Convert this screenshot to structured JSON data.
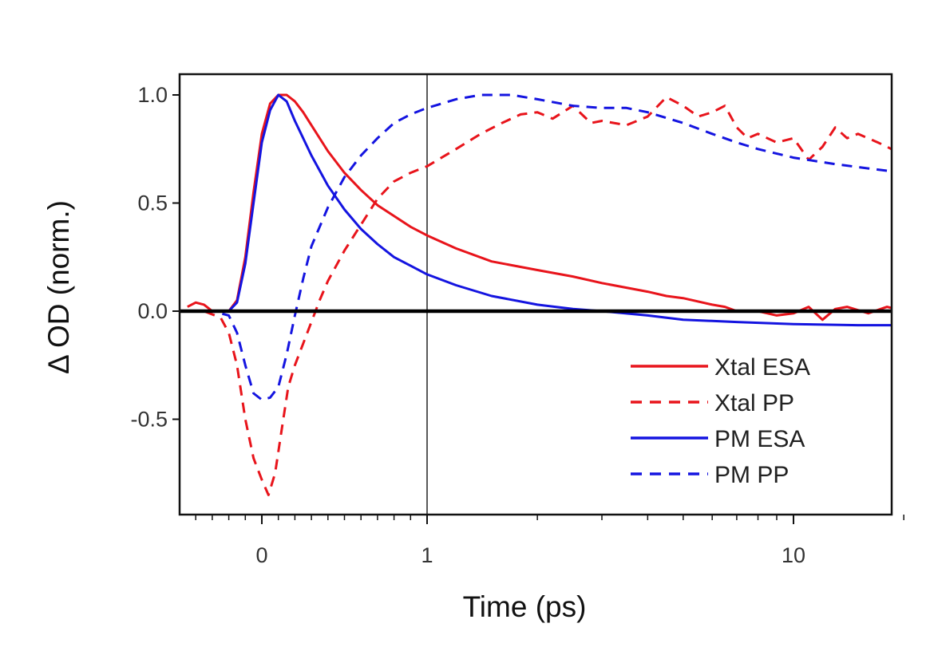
{
  "chart_data": {
    "type": "line",
    "xlabel": "Time (ps)",
    "ylabel": "Δ OD (norm.)",
    "x_scale": "linear below 1 ps, logarithmic above 1 ps",
    "xlim": [
      -0.45,
      20
    ],
    "ylim": [
      -0.95,
      1.1
    ],
    "x_ticks": [
      {
        "value": 0,
        "label": "0"
      },
      {
        "value": 1,
        "label": "1"
      },
      {
        "value": 10,
        "label": "10"
      }
    ],
    "y_ticks": [
      {
        "value": 1.0,
        "label": "1.0"
      },
      {
        "value": 0.5,
        "label": "0.5"
      },
      {
        "value": 0.0,
        "label": "0.0"
      },
      {
        "value": -0.5,
        "label": "-0.5"
      }
    ],
    "grid": false,
    "zero_line": true,
    "vertical_reference_x": 1,
    "legend_position": "bottom-right",
    "series": [
      {
        "name": "Xtal ESA",
        "color": "#e8141b",
        "dash": "solid",
        "points": [
          [
            -0.45,
            0.02
          ],
          [
            -0.4,
            0.04
          ],
          [
            -0.35,
            0.03
          ],
          [
            -0.3,
            0.0
          ],
          [
            -0.25,
            0.0
          ],
          [
            -0.2,
            0.0
          ],
          [
            -0.15,
            0.05
          ],
          [
            -0.1,
            0.25
          ],
          [
            -0.05,
            0.55
          ],
          [
            0.0,
            0.82
          ],
          [
            0.05,
            0.96
          ],
          [
            0.1,
            1.0
          ],
          [
            0.15,
            1.0
          ],
          [
            0.2,
            0.97
          ],
          [
            0.25,
            0.92
          ],
          [
            0.3,
            0.86
          ],
          [
            0.4,
            0.74
          ],
          [
            0.5,
            0.64
          ],
          [
            0.6,
            0.56
          ],
          [
            0.7,
            0.49
          ],
          [
            0.8,
            0.44
          ],
          [
            0.9,
            0.39
          ],
          [
            1.0,
            0.35
          ],
          [
            1.2,
            0.29
          ],
          [
            1.5,
            0.23
          ],
          [
            2.0,
            0.19
          ],
          [
            2.5,
            0.16
          ],
          [
            3.0,
            0.13
          ],
          [
            4.0,
            0.09
          ],
          [
            4.5,
            0.07
          ],
          [
            5.0,
            0.06
          ],
          [
            6.0,
            0.03
          ],
          [
            6.5,
            0.02
          ],
          [
            7.0,
            0.0
          ],
          [
            8.0,
            0.0
          ],
          [
            9.0,
            -0.02
          ],
          [
            10.0,
            -0.01
          ],
          [
            11.0,
            0.02
          ],
          [
            12.0,
            -0.04
          ],
          [
            13.0,
            0.01
          ],
          [
            14.0,
            0.02
          ],
          [
            16.0,
            -0.01
          ],
          [
            18.0,
            0.02
          ],
          [
            20.0,
            0.0
          ]
        ]
      },
      {
        "name": "Xtal PP",
        "color": "#e8141b",
        "dash": "dashed",
        "points": [
          [
            -0.45,
            0.0
          ],
          [
            -0.35,
            0.0
          ],
          [
            -0.25,
            -0.03
          ],
          [
            -0.2,
            -0.1
          ],
          [
            -0.15,
            -0.25
          ],
          [
            -0.1,
            -0.5
          ],
          [
            -0.05,
            -0.68
          ],
          [
            0.0,
            -0.78
          ],
          [
            0.04,
            -0.85
          ],
          [
            0.08,
            -0.75
          ],
          [
            0.12,
            -0.55
          ],
          [
            0.16,
            -0.35
          ],
          [
            0.2,
            -0.25
          ],
          [
            0.25,
            -0.15
          ],
          [
            0.3,
            -0.05
          ],
          [
            0.35,
            0.05
          ],
          [
            0.4,
            0.14
          ],
          [
            0.5,
            0.28
          ],
          [
            0.6,
            0.4
          ],
          [
            0.7,
            0.52
          ],
          [
            0.8,
            0.6
          ],
          [
            0.9,
            0.64
          ],
          [
            1.0,
            0.67
          ],
          [
            1.2,
            0.75
          ],
          [
            1.4,
            0.82
          ],
          [
            1.6,
            0.87
          ],
          [
            1.8,
            0.91
          ],
          [
            2.0,
            0.92
          ],
          [
            2.2,
            0.89
          ],
          [
            2.5,
            0.95
          ],
          [
            2.8,
            0.87
          ],
          [
            3.0,
            0.88
          ],
          [
            3.5,
            0.86
          ],
          [
            4.0,
            0.9
          ],
          [
            4.5,
            0.99
          ],
          [
            5.0,
            0.95
          ],
          [
            5.5,
            0.9
          ],
          [
            6.0,
            0.92
          ],
          [
            6.5,
            0.95
          ],
          [
            7.0,
            0.85
          ],
          [
            7.5,
            0.8
          ],
          [
            8.0,
            0.82
          ],
          [
            9.0,
            0.78
          ],
          [
            10.0,
            0.8
          ],
          [
            11.0,
            0.7
          ],
          [
            12.0,
            0.76
          ],
          [
            13.0,
            0.85
          ],
          [
            14.0,
            0.8
          ],
          [
            15.0,
            0.82
          ],
          [
            17.0,
            0.78
          ],
          [
            18.0,
            0.76
          ],
          [
            20.0,
            0.72
          ]
        ]
      },
      {
        "name": "PM ESA",
        "color": "#1414e0",
        "dash": "solid",
        "points": [
          [
            -0.45,
            0.0
          ],
          [
            -0.3,
            0.0
          ],
          [
            -0.2,
            0.0
          ],
          [
            -0.15,
            0.04
          ],
          [
            -0.1,
            0.22
          ],
          [
            -0.05,
            0.5
          ],
          [
            0.0,
            0.78
          ],
          [
            0.05,
            0.93
          ],
          [
            0.1,
            1.0
          ],
          [
            0.15,
            0.97
          ],
          [
            0.2,
            0.88
          ],
          [
            0.3,
            0.72
          ],
          [
            0.4,
            0.58
          ],
          [
            0.5,
            0.47
          ],
          [
            0.6,
            0.38
          ],
          [
            0.7,
            0.31
          ],
          [
            0.8,
            0.25
          ],
          [
            0.9,
            0.21
          ],
          [
            1.0,
            0.17
          ],
          [
            1.2,
            0.12
          ],
          [
            1.5,
            0.07
          ],
          [
            2.0,
            0.03
          ],
          [
            2.5,
            0.01
          ],
          [
            3.0,
            0.0
          ],
          [
            4.0,
            -0.02
          ],
          [
            5.0,
            -0.04
          ],
          [
            7.0,
            -0.05
          ],
          [
            10.0,
            -0.06
          ],
          [
            15.0,
            -0.065
          ],
          [
            20.0,
            -0.065
          ]
        ]
      },
      {
        "name": "PM PP",
        "color": "#1414e0",
        "dash": "dashed",
        "points": [
          [
            -0.45,
            0.0
          ],
          [
            -0.3,
            0.0
          ],
          [
            -0.2,
            -0.02
          ],
          [
            -0.15,
            -0.1
          ],
          [
            -0.1,
            -0.25
          ],
          [
            -0.05,
            -0.38
          ],
          [
            0.0,
            -0.41
          ],
          [
            0.05,
            -0.4
          ],
          [
            0.1,
            -0.35
          ],
          [
            0.15,
            -0.2
          ],
          [
            0.2,
            -0.02
          ],
          [
            0.25,
            0.15
          ],
          [
            0.3,
            0.3
          ],
          [
            0.4,
            0.48
          ],
          [
            0.5,
            0.62
          ],
          [
            0.6,
            0.72
          ],
          [
            0.7,
            0.8
          ],
          [
            0.8,
            0.87
          ],
          [
            0.9,
            0.91
          ],
          [
            1.0,
            0.94
          ],
          [
            1.2,
            0.98
          ],
          [
            1.4,
            1.0
          ],
          [
            1.7,
            1.0
          ],
          [
            2.0,
            0.98
          ],
          [
            2.5,
            0.95
          ],
          [
            3.0,
            0.94
          ],
          [
            3.5,
            0.94
          ],
          [
            4.0,
            0.92
          ],
          [
            5.0,
            0.87
          ],
          [
            6.0,
            0.82
          ],
          [
            7.0,
            0.78
          ],
          [
            8.0,
            0.75
          ],
          [
            10.0,
            0.71
          ],
          [
            13.0,
            0.68
          ],
          [
            16.0,
            0.66
          ],
          [
            20.0,
            0.64
          ]
        ]
      }
    ]
  }
}
